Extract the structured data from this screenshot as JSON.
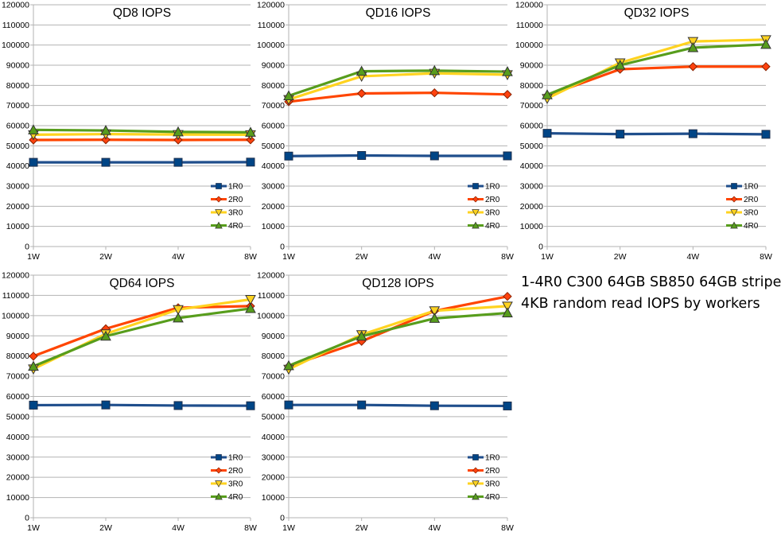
{
  "caption": {
    "line1": "1-4R0 C300 64GB SB850 64GB stripe",
    "line2": "4KB random read IOPS by workers"
  },
  "colors": {
    "1R0": "#1f4e8c",
    "2R0": "#ff4500",
    "3R0": "#ffd320",
    "4R0": "#579d1c",
    "marker_1R0": "#004586",
    "marker_2R0": "#ff420e",
    "marker_3R0": "#ffd320",
    "marker_4R0": "#579d1c",
    "grid": "#b3b3b3"
  },
  "chart_data": [
    {
      "type": "line",
      "title": "QD8 IOPS",
      "categories": [
        "1W",
        "2W",
        "4W",
        "8W"
      ],
      "ylim": [
        0,
        120000
      ],
      "yticks": [
        0,
        10000,
        20000,
        30000,
        40000,
        50000,
        60000,
        70000,
        80000,
        90000,
        100000,
        110000,
        120000
      ],
      "grid": true,
      "legend": "bottom-right",
      "series": [
        {
          "name": "1R0",
          "marker": "square",
          "values": [
            41800,
            41800,
            41800,
            41900
          ]
        },
        {
          "name": "2R0",
          "marker": "diamond",
          "values": [
            52900,
            53000,
            52900,
            53000
          ]
        },
        {
          "name": "3R0",
          "marker": "triangle-down",
          "values": [
            55500,
            55800,
            55600,
            55500
          ]
        },
        {
          "name": "4R0",
          "marker": "triangle-up",
          "values": [
            57900,
            57600,
            56900,
            56700
          ]
        }
      ]
    },
    {
      "type": "line",
      "title": "QD16 IOPS",
      "categories": [
        "1W",
        "2W",
        "4W",
        "8W"
      ],
      "ylim": [
        0,
        120000
      ],
      "yticks": [
        0,
        10000,
        20000,
        30000,
        40000,
        50000,
        60000,
        70000,
        80000,
        90000,
        100000,
        110000,
        120000
      ],
      "grid": true,
      "legend": "bottom-right",
      "series": [
        {
          "name": "1R0",
          "marker": "square",
          "values": [
            44900,
            45200,
            45000,
            45000
          ]
        },
        {
          "name": "2R0",
          "marker": "diamond",
          "values": [
            71900,
            76000,
            76300,
            75500
          ]
        },
        {
          "name": "3R0",
          "marker": "triangle-down",
          "values": [
            73000,
            84500,
            86000,
            85300
          ]
        },
        {
          "name": "4R0",
          "marker": "triangle-up",
          "values": [
            74800,
            87000,
            87300,
            86800
          ]
        }
      ]
    },
    {
      "type": "line",
      "title": "QD32 IOPS",
      "categories": [
        "1W",
        "2W",
        "4W",
        "8W"
      ],
      "ylim": [
        0,
        120000
      ],
      "yticks": [
        0,
        10000,
        20000,
        30000,
        40000,
        50000,
        60000,
        70000,
        80000,
        90000,
        100000,
        110000,
        120000
      ],
      "grid": true,
      "legend": "bottom-right",
      "series": [
        {
          "name": "1R0",
          "marker": "square",
          "values": [
            56200,
            55800,
            56000,
            55700
          ]
        },
        {
          "name": "2R0",
          "marker": "diamond",
          "values": [
            74900,
            88000,
            89300,
            89300
          ]
        },
        {
          "name": "3R0",
          "marker": "triangle-down",
          "values": [
            73500,
            91200,
            101800,
            102700
          ]
        },
        {
          "name": "4R0",
          "marker": "triangle-up",
          "values": [
            75300,
            90000,
            98700,
            100300
          ]
        }
      ]
    },
    {
      "type": "line",
      "title": "QD64 IOPS",
      "categories": [
        "1W",
        "2W",
        "4W",
        "8W"
      ],
      "ylim": [
        0,
        120000
      ],
      "yticks": [
        0,
        10000,
        20000,
        30000,
        40000,
        50000,
        60000,
        70000,
        80000,
        90000,
        100000,
        110000,
        120000
      ],
      "grid": true,
      "legend": "bottom-right",
      "series": [
        {
          "name": "1R0",
          "marker": "square",
          "values": [
            55700,
            55800,
            55500,
            55400
          ]
        },
        {
          "name": "2R0",
          "marker": "diamond",
          "values": [
            79900,
            93500,
            103900,
            104700
          ]
        },
        {
          "name": "3R0",
          "marker": "triangle-down",
          "values": [
            73600,
            91000,
            103000,
            108000
          ]
        },
        {
          "name": "4R0",
          "marker": "triangle-up",
          "values": [
            74900,
            89800,
            98800,
            103500
          ]
        }
      ]
    },
    {
      "type": "line",
      "title": "QD128 IOPS",
      "categories": [
        "1W",
        "2W",
        "4W",
        "8W"
      ],
      "ylim": [
        0,
        120000
      ],
      "yticks": [
        0,
        10000,
        20000,
        30000,
        40000,
        50000,
        60000,
        70000,
        80000,
        90000,
        100000,
        110000,
        120000
      ],
      "grid": true,
      "legend": "bottom-right",
      "series": [
        {
          "name": "1R0",
          "marker": "square",
          "values": [
            55800,
            55800,
            55400,
            55300
          ]
        },
        {
          "name": "2R0",
          "marker": "diamond",
          "values": [
            74900,
            87300,
            102300,
            109500
          ]
        },
        {
          "name": "3R0",
          "marker": "triangle-down",
          "values": [
            73500,
            90600,
            102400,
            104700
          ]
        },
        {
          "name": "4R0",
          "marker": "triangle-up",
          "values": [
            75200,
            89800,
            98600,
            101300
          ]
        }
      ]
    }
  ]
}
